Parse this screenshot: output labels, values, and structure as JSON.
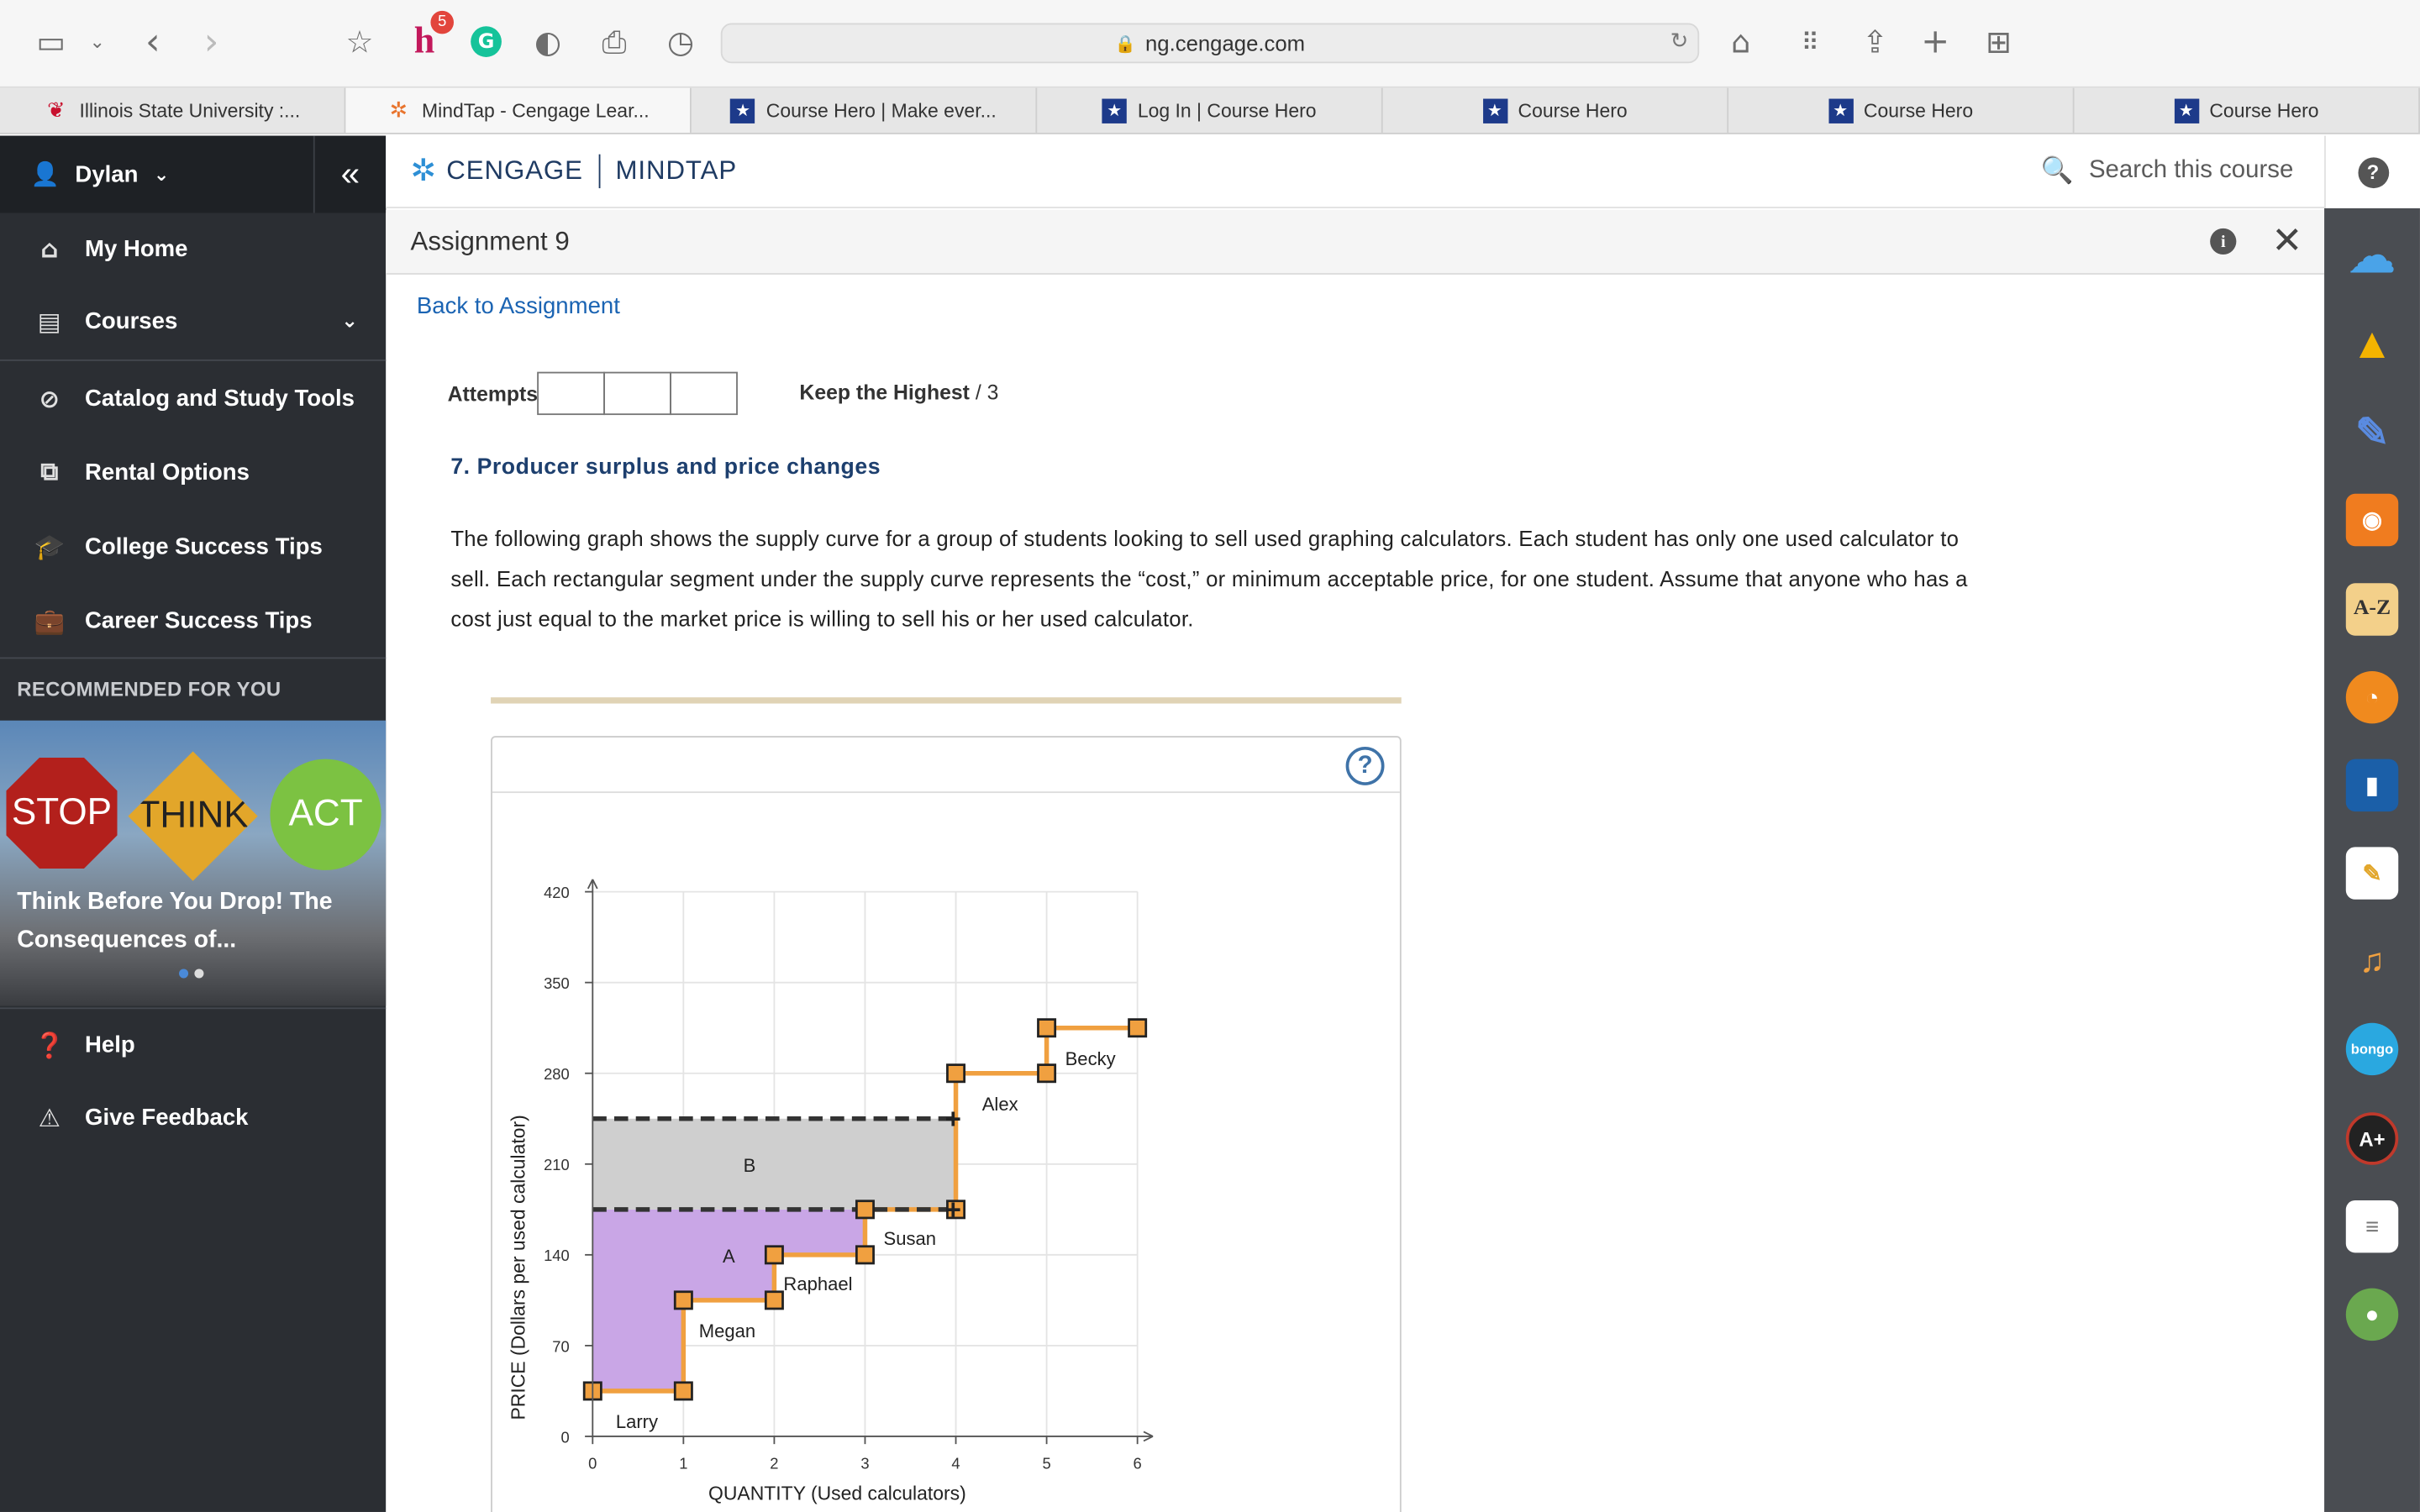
{
  "browser": {
    "url": "ng.cengage.com",
    "notification_count": "5",
    "tabs": [
      {
        "label": "Illinois State University :..."
      },
      {
        "label": "MindTap - Cengage Lear..."
      },
      {
        "label": "Course Hero | Make ever..."
      },
      {
        "label": "Log In | Course Hero"
      },
      {
        "label": "Course Hero"
      },
      {
        "label": "Course Hero"
      },
      {
        "label": "Course Hero"
      }
    ]
  },
  "sidebar": {
    "user": "Dylan",
    "items": [
      {
        "label": "My Home"
      },
      {
        "label": "Courses"
      },
      {
        "label": "Catalog and Study Tools"
      },
      {
        "label": "Rental Options"
      },
      {
        "label": "College Success Tips"
      },
      {
        "label": "Career Success Tips"
      }
    ],
    "recommended_title": "RECOMMENDED FOR YOU",
    "promo": {
      "signs": [
        "STOP",
        "THINK",
        "ACT"
      ],
      "caption": "Think Before You Drop! The Consequences of..."
    },
    "bottom": [
      {
        "label": "Help"
      },
      {
        "label": "Give Feedback"
      }
    ]
  },
  "header": {
    "brand_left": "CENGAGE",
    "brand_right": "MINDTAP",
    "search_placeholder": "Search this course",
    "help": "?"
  },
  "assignment": {
    "title": "Assignment 9",
    "back_link": "Back to Assignment",
    "attempts_label": "Attempts",
    "keep_label": "Keep the Highest",
    "keep_value": "/ 3",
    "question_title": "7. Producer surplus and price changes",
    "question_text": "The following graph shows the supply curve for a group of students looking to sell used graphing calculators. Each student has only one used calculator to sell. Each rectangular segment under the supply curve represents the “cost,” or minimum acceptable price, for one student. Assume that anyone who has a cost just equal to the market price is willing to sell his or her used calculator."
  },
  "chart_data": {
    "type": "step",
    "xlabel": "QUANTITY (Used calculators)",
    "ylabel": "PRICE (Dollars per used calculator)",
    "xlim": [
      0,
      6
    ],
    "ylim": [
      0,
      420
    ],
    "xticks": [
      "0",
      "1",
      "2",
      "3",
      "4",
      "5",
      "6"
    ],
    "yticks": [
      "0",
      "70",
      "140",
      "210",
      "280",
      "350",
      "420"
    ],
    "sellers": [
      {
        "name": "Larry",
        "x_start": 0,
        "x_end": 1,
        "price": 35
      },
      {
        "name": "Megan",
        "x_start": 1,
        "x_end": 2,
        "price": 105
      },
      {
        "name": "Raphael",
        "x_start": 2,
        "x_end": 3,
        "price": 140
      },
      {
        "name": "Susan",
        "x_start": 3,
        "x_end": 4,
        "price": 175
      },
      {
        "name": "Alex",
        "x_start": 4,
        "x_end": 5,
        "price": 280
      },
      {
        "name": "Becky",
        "x_start": 5,
        "x_end": 6,
        "price": 315
      }
    ],
    "price_lines": [
      175,
      245
    ],
    "areas": [
      {
        "label": "A",
        "price_top": 175,
        "color": "#c9a6e6"
      },
      {
        "label": "B",
        "price_bottom": 175,
        "price_top": 245,
        "color": "#cfcfcf"
      }
    ],
    "colors": {
      "curve": "#f0a040",
      "marker_fill": "#f0a040",
      "dash": "#333333"
    }
  }
}
